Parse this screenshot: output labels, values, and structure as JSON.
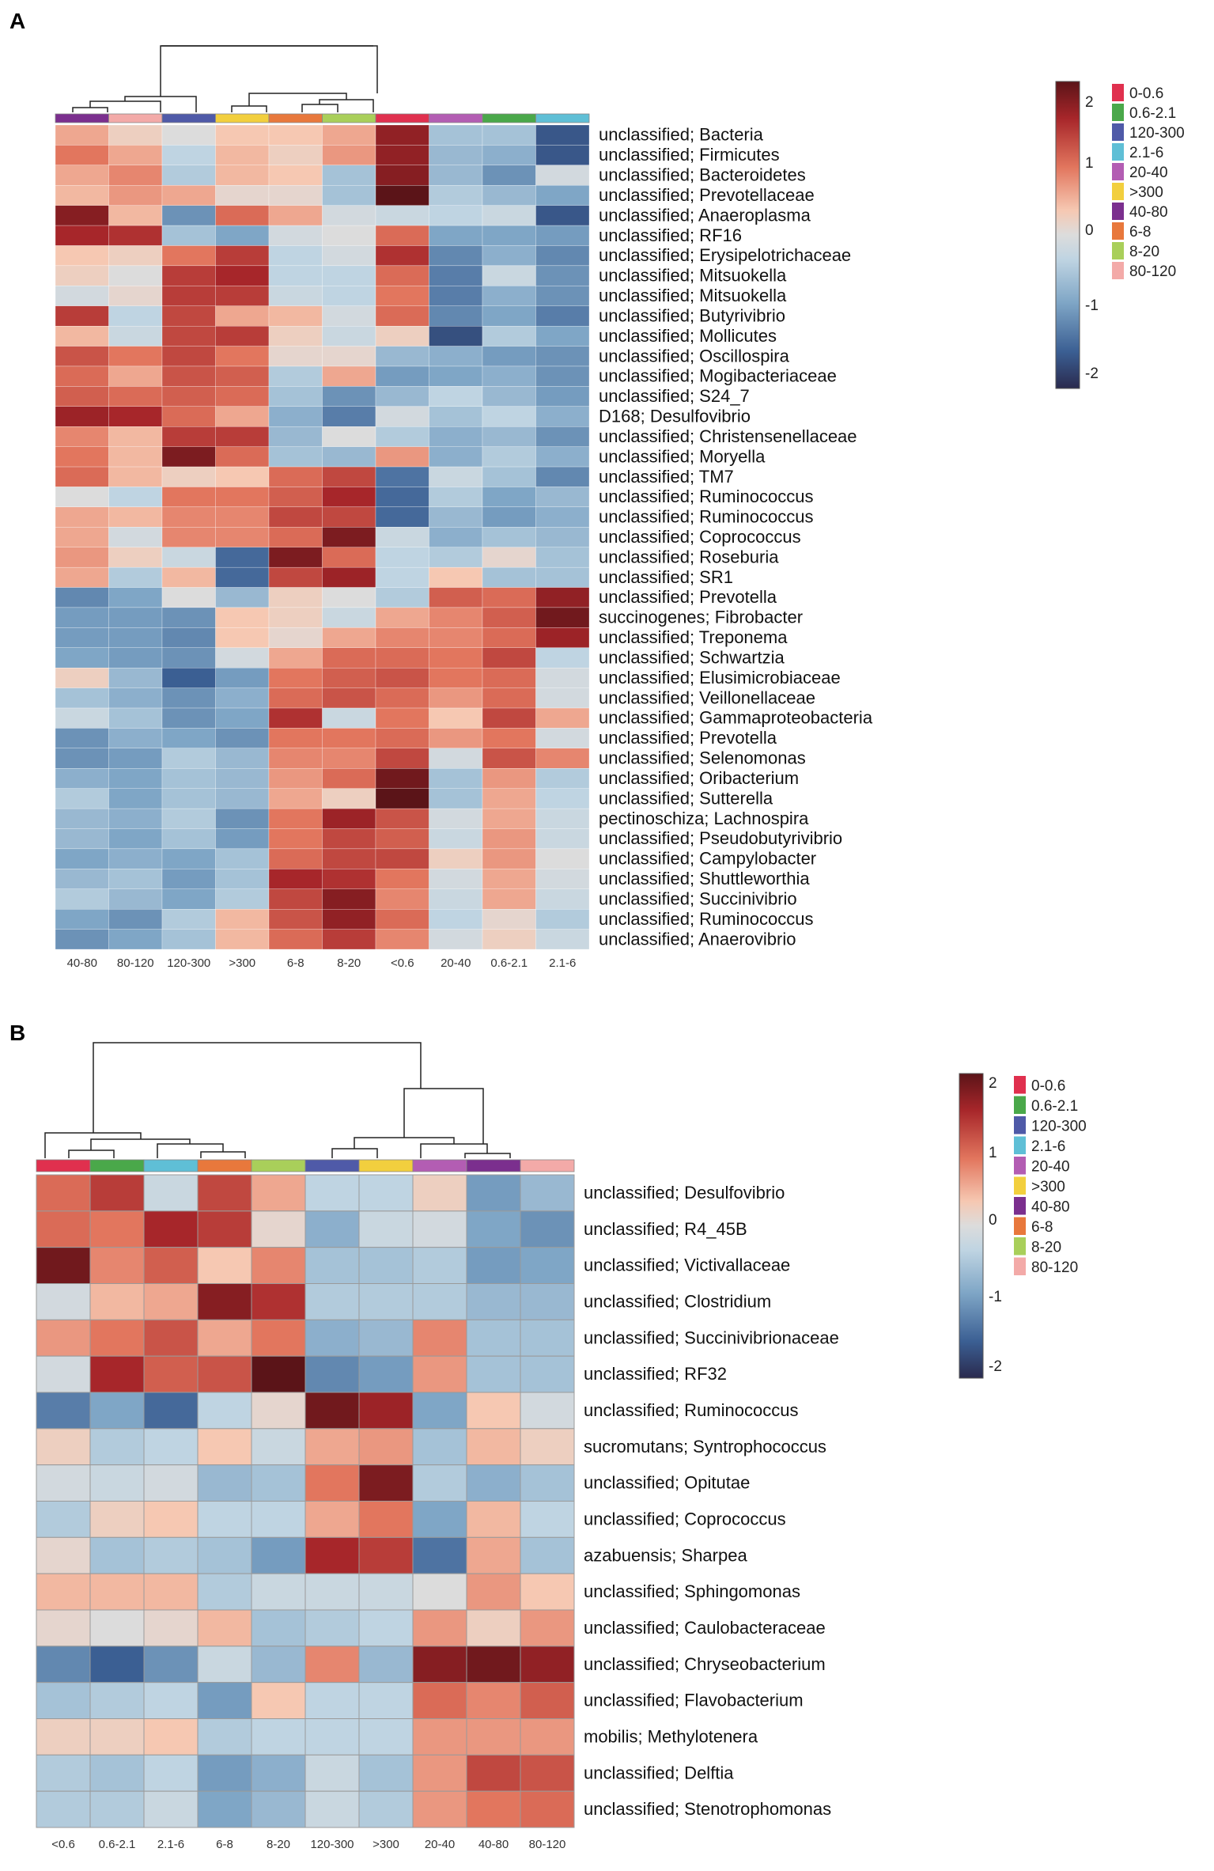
{
  "panels": {
    "A": {
      "label": "A"
    },
    "B": {
      "label": "B"
    }
  },
  "legend": {
    "groups": [
      {
        "name": "0-0.6",
        "color": "#e0304e"
      },
      {
        "name": "0.6-2.1",
        "color": "#4aa84a"
      },
      {
        "name": "120-300",
        "color": "#4f5aa8"
      },
      {
        "name": "2.1-6",
        "color": "#5fbfd6"
      },
      {
        "name": "20-40",
        "color": "#b35db3"
      },
      {
        "name": ">300",
        "color": "#f2cf3e"
      },
      {
        "name": "40-80",
        "color": "#7b2f8e"
      },
      {
        "name": "6-8",
        "color": "#e8783c"
      },
      {
        "name": "8-20",
        "color": "#a9cf5a"
      },
      {
        "name": "80-120",
        "color": "#f3aaa8"
      }
    ],
    "scale_ticks": [
      "2",
      "1",
      "0",
      "-1",
      "-2"
    ]
  },
  "chart_data": [
    {
      "type": "heatmap",
      "title": "A",
      "columns": [
        "40-80",
        "80-120",
        "120-300",
        ">300",
        "6-8",
        "8-20",
        "<0.6",
        "20-40",
        "0.6-2.1",
        "2.1-6"
      ],
      "column_groups": [
        "40-80",
        "80-120",
        "120-300",
        ">300",
        "6-8",
        "8-20",
        "0-0.6",
        "20-40",
        "0.6-2.1",
        "2.1-6"
      ],
      "rows": [
        "unclassified; Bacteria",
        "unclassified; Firmicutes",
        "unclassified; Bacteroidetes",
        "unclassified; Prevotellaceae",
        "unclassified; Anaeroplasma",
        "unclassified; RF16",
        "unclassified; Erysipelotrichaceae",
        "unclassified; Mitsuokella",
        "unclassified; Mitsuokella",
        "unclassified; Butyrivibrio",
        "unclassified; Mollicutes",
        "unclassified; Oscillospira",
        "unclassified; Mogibacteriaceae",
        "unclassified; S24_7",
        "D168; Desulfovibrio",
        "unclassified; Christensenellaceae",
        "unclassified; Moryella",
        "unclassified; TM7",
        "unclassified; Ruminococcus",
        "unclassified; Ruminococcus",
        "unclassified; Coprococcus",
        "unclassified; Roseburia",
        "unclassified; SR1",
        "unclassified; Prevotella",
        "succinogenes; Fibrobacter",
        "unclassified; Treponema",
        "unclassified; Schwartzia",
        "unclassified; Elusimicrobiaceae",
        "unclassified; Veillonellaceae",
        "unclassified; Gammaproteobacteria",
        "unclassified; Prevotella",
        "unclassified; Selenomonas",
        "unclassified; Oribacterium",
        "unclassified; Sutterella",
        "pectinoschiza; Lachnospira",
        "unclassified; Pseudobutyrivibrio",
        "unclassified; Campylobacter",
        "unclassified; Shuttleworthia",
        "unclassified; Succinivibrio",
        "unclassified; Ruminococcus",
        "unclassified; Anaerovibrio"
      ],
      "values": [
        [
          0.5,
          0.2,
          0.0,
          0.3,
          0.3,
          0.5,
          1.7,
          -0.5,
          -0.5,
          -1.6
        ],
        [
          0.8,
          0.5,
          -0.3,
          0.4,
          0.2,
          0.6,
          1.7,
          -0.6,
          -0.7,
          -1.6
        ],
        [
          0.5,
          0.7,
          -0.4,
          0.4,
          0.3,
          -0.5,
          1.8,
          -0.6,
          -1.0,
          -0.1
        ],
        [
          0.4,
          0.6,
          0.5,
          0.1,
          0.1,
          -0.5,
          2.2,
          -0.4,
          -0.6,
          -0.8
        ],
        [
          1.8,
          0.4,
          -1.0,
          0.9,
          0.5,
          -0.1,
          -0.2,
          -0.3,
          -0.2,
          -1.6
        ],
        [
          1.5,
          1.4,
          -0.5,
          -0.8,
          -0.1,
          0.0,
          0.9,
          -0.8,
          -0.8,
          -0.9
        ],
        [
          0.3,
          0.2,
          0.8,
          1.3,
          -0.3,
          -0.1,
          1.4,
          -1.1,
          -0.7,
          -1.1
        ],
        [
          0.2,
          0.0,
          1.3,
          1.5,
          -0.3,
          -0.3,
          0.9,
          -1.2,
          -0.2,
          -1.0
        ],
        [
          -0.1,
          0.1,
          1.3,
          1.3,
          -0.2,
          -0.3,
          0.8,
          -1.2,
          -0.7,
          -1.0
        ],
        [
          1.3,
          -0.3,
          1.2,
          0.5,
          0.4,
          -0.1,
          0.9,
          -1.1,
          -0.8,
          -1.2
        ],
        [
          0.4,
          -0.2,
          1.2,
          1.3,
          0.2,
          -0.2,
          0.2,
          -1.7,
          -0.4,
          -0.8
        ],
        [
          1.1,
          0.8,
          1.2,
          0.8,
          0.1,
          0.1,
          -0.6,
          -0.7,
          -0.9,
          -1.0
        ],
        [
          0.9,
          0.5,
          1.1,
          1.0,
          -0.4,
          0.5,
          -0.9,
          -0.8,
          -0.7,
          -1.0
        ],
        [
          1.0,
          0.9,
          1.0,
          0.9,
          -0.5,
          -1.0,
          -0.6,
          -0.3,
          -0.6,
          -0.9
        ],
        [
          1.6,
          1.5,
          0.9,
          0.5,
          -0.7,
          -1.2,
          -0.1,
          -0.5,
          -0.3,
          -0.7
        ],
        [
          0.7,
          0.4,
          1.3,
          1.3,
          -0.6,
          0.0,
          -0.4,
          -0.7,
          -0.6,
          -1.0
        ],
        [
          0.8,
          0.4,
          1.9,
          0.9,
          -0.5,
          -0.6,
          0.6,
          -0.7,
          -0.4,
          -0.7
        ],
        [
          0.9,
          0.4,
          0.2,
          0.3,
          0.9,
          1.2,
          -1.3,
          -0.2,
          -0.5,
          -1.1
        ],
        [
          0.0,
          -0.3,
          0.8,
          0.8,
          1.0,
          1.5,
          -1.4,
          -0.4,
          -0.8,
          -0.6
        ],
        [
          0.5,
          0.4,
          0.7,
          0.7,
          1.2,
          1.2,
          -1.4,
          -0.6,
          -0.9,
          -0.7
        ],
        [
          0.5,
          -0.1,
          0.7,
          0.7,
          0.9,
          1.9,
          -0.2,
          -0.7,
          -0.5,
          -0.6
        ],
        [
          0.6,
          0.2,
          -0.2,
          -1.4,
          1.9,
          0.9,
          -0.3,
          -0.4,
          0.1,
          -0.5
        ],
        [
          0.5,
          -0.4,
          0.4,
          -1.4,
          1.2,
          1.6,
          -0.3,
          0.3,
          -0.5,
          -0.5
        ],
        [
          -1.1,
          -0.8,
          0.0,
          -0.6,
          0.2,
          0.0,
          -0.4,
          1.0,
          0.9,
          1.7
        ],
        [
          -0.9,
          -0.9,
          -1.0,
          0.3,
          0.2,
          -0.2,
          0.5,
          0.7,
          1.0,
          2.0
        ],
        [
          -0.9,
          -0.9,
          -1.1,
          0.3,
          0.1,
          0.5,
          0.7,
          0.7,
          0.9,
          1.6
        ],
        [
          -0.8,
          -0.9,
          -1.0,
          -0.1,
          0.5,
          0.9,
          0.9,
          0.8,
          1.2,
          -0.3
        ],
        [
          0.2,
          -0.6,
          -1.5,
          -0.9,
          0.8,
          1.0,
          1.1,
          0.8,
          0.9,
          -0.1
        ],
        [
          -0.5,
          -0.7,
          -1.0,
          -0.7,
          0.9,
          1.1,
          0.9,
          0.6,
          0.9,
          -0.1
        ],
        [
          -0.2,
          -0.5,
          -1.0,
          -0.8,
          1.4,
          -0.2,
          0.8,
          0.3,
          1.2,
          0.5
        ],
        [
          -1.0,
          -0.7,
          -0.8,
          -1.0,
          0.8,
          0.8,
          0.9,
          0.6,
          0.8,
          -0.1
        ],
        [
          -1.0,
          -0.9,
          -0.4,
          -0.6,
          0.7,
          0.7,
          1.2,
          -0.1,
          1.1,
          0.7
        ],
        [
          -0.7,
          -0.8,
          -0.5,
          -0.6,
          0.6,
          0.9,
          2.0,
          -0.5,
          0.6,
          -0.4
        ],
        [
          -0.4,
          -0.8,
          -0.5,
          -0.6,
          0.5,
          0.2,
          2.2,
          -0.5,
          0.5,
          -0.3
        ],
        [
          -0.6,
          -0.7,
          -0.4,
          -1.0,
          0.8,
          1.6,
          1.1,
          -0.1,
          0.5,
          -0.2
        ],
        [
          -0.6,
          -0.8,
          -0.5,
          -0.9,
          0.8,
          1.2,
          1.0,
          -0.2,
          0.6,
          -0.2
        ],
        [
          -0.8,
          -0.7,
          -0.8,
          -0.5,
          0.9,
          1.2,
          1.2,
          0.2,
          0.6,
          0.0
        ],
        [
          -0.6,
          -0.5,
          -0.9,
          -0.5,
          1.5,
          1.4,
          0.8,
          -0.1,
          0.5,
          -0.1
        ],
        [
          -0.4,
          -0.6,
          -0.8,
          -0.4,
          1.2,
          1.8,
          0.7,
          -0.2,
          0.5,
          -0.2
        ],
        [
          -0.8,
          -1.0,
          -0.4,
          0.4,
          1.1,
          1.7,
          0.9,
          -0.3,
          0.1,
          -0.4
        ],
        [
          -1.0,
          -0.8,
          -0.5,
          0.4,
          0.9,
          1.3,
          0.7,
          -0.1,
          0.2,
          -0.2
        ]
      ],
      "color_scale": {
        "min": -2,
        "max": 2
      }
    },
    {
      "type": "heatmap",
      "title": "B",
      "columns": [
        "<0.6",
        "0.6-2.1",
        "2.1-6",
        "6-8",
        "8-20",
        "120-300",
        ">300",
        "20-40",
        "40-80",
        "80-120"
      ],
      "column_groups": [
        "0-0.6",
        "0.6-2.1",
        "2.1-6",
        "6-8",
        "8-20",
        "120-300",
        ">300",
        "20-40",
        "40-80",
        "80-120"
      ],
      "rows": [
        "unclassified; Desulfovibrio",
        "unclassified; R4_45B",
        "unclassified; Victivallaceae",
        "unclassified; Clostridium",
        "unclassified; Succinivibrionaceae",
        "unclassified; RF32",
        "unclassified; Ruminococcus",
        "sucromutans; Syntrophococcus",
        "unclassified; Opitutae",
        "unclassified; Coprococcus",
        "azabuensis; Sharpea",
        "unclassified; Sphingomonas",
        "unclassified; Caulobacteraceae",
        "unclassified; Chryseobacterium",
        "unclassified; Flavobacterium",
        "mobilis; Methylotenera",
        "unclassified; Delftia",
        "unclassified; Stenotrophomonas"
      ],
      "values": [
        [
          0.9,
          1.3,
          -0.2,
          1.2,
          0.5,
          -0.3,
          -0.3,
          0.2,
          -0.9,
          -0.6
        ],
        [
          0.9,
          0.8,
          1.5,
          1.3,
          0.1,
          -0.7,
          -0.2,
          -0.1,
          -0.8,
          -1.0
        ],
        [
          2.0,
          0.7,
          1.0,
          0.3,
          0.7,
          -0.5,
          -0.5,
          -0.4,
          -0.9,
          -0.8
        ],
        [
          -0.1,
          0.4,
          0.5,
          1.8,
          1.4,
          -0.4,
          -0.4,
          -0.4,
          -0.6,
          -0.6
        ],
        [
          0.6,
          0.8,
          1.1,
          0.5,
          0.8,
          -0.7,
          -0.6,
          0.7,
          -0.5,
          -0.5
        ],
        [
          -0.1,
          1.5,
          1.0,
          1.1,
          2.2,
          -1.1,
          -0.9,
          0.6,
          -0.5,
          -0.5
        ],
        [
          -1.2,
          -0.8,
          -1.4,
          -0.3,
          0.1,
          2.0,
          1.6,
          -0.8,
          0.3,
          -0.1
        ],
        [
          0.2,
          -0.4,
          -0.3,
          0.3,
          -0.2,
          0.5,
          0.6,
          -0.5,
          0.4,
          0.2
        ],
        [
          -0.1,
          -0.2,
          -0.1,
          -0.6,
          -0.5,
          0.8,
          1.9,
          -0.4,
          -0.7,
          -0.5
        ],
        [
          -0.4,
          0.2,
          0.3,
          -0.3,
          -0.3,
          0.5,
          0.8,
          -0.8,
          0.4,
          -0.3
        ],
        [
          0.1,
          -0.5,
          -0.4,
          -0.5,
          -0.9,
          1.5,
          1.3,
          -1.3,
          0.5,
          -0.5
        ],
        [
          0.4,
          0.4,
          0.4,
          -0.4,
          -0.2,
          -0.2,
          -0.2,
          0.0,
          0.6,
          0.3
        ],
        [
          0.1,
          0.0,
          0.1,
          0.4,
          -0.5,
          -0.4,
          -0.3,
          0.6,
          0.2,
          0.6
        ],
        [
          -1.1,
          -1.5,
          -1.0,
          -0.2,
          -0.6,
          0.7,
          -0.6,
          1.8,
          2.0,
          1.7
        ],
        [
          -0.5,
          -0.4,
          -0.3,
          -0.9,
          0.3,
          -0.3,
          -0.3,
          0.9,
          0.7,
          1.0
        ],
        [
          0.2,
          0.2,
          0.3,
          -0.4,
          -0.3,
          -0.3,
          -0.3,
          0.6,
          0.6,
          0.6
        ],
        [
          -0.4,
          -0.5,
          -0.3,
          -0.9,
          -0.7,
          -0.2,
          -0.5,
          0.6,
          1.2,
          1.1
        ],
        [
          -0.4,
          -0.4,
          -0.2,
          -0.8,
          -0.6,
          -0.2,
          -0.4,
          0.6,
          0.8,
          0.9
        ]
      ],
      "color_scale": {
        "min": -2,
        "max": 2
      }
    }
  ]
}
